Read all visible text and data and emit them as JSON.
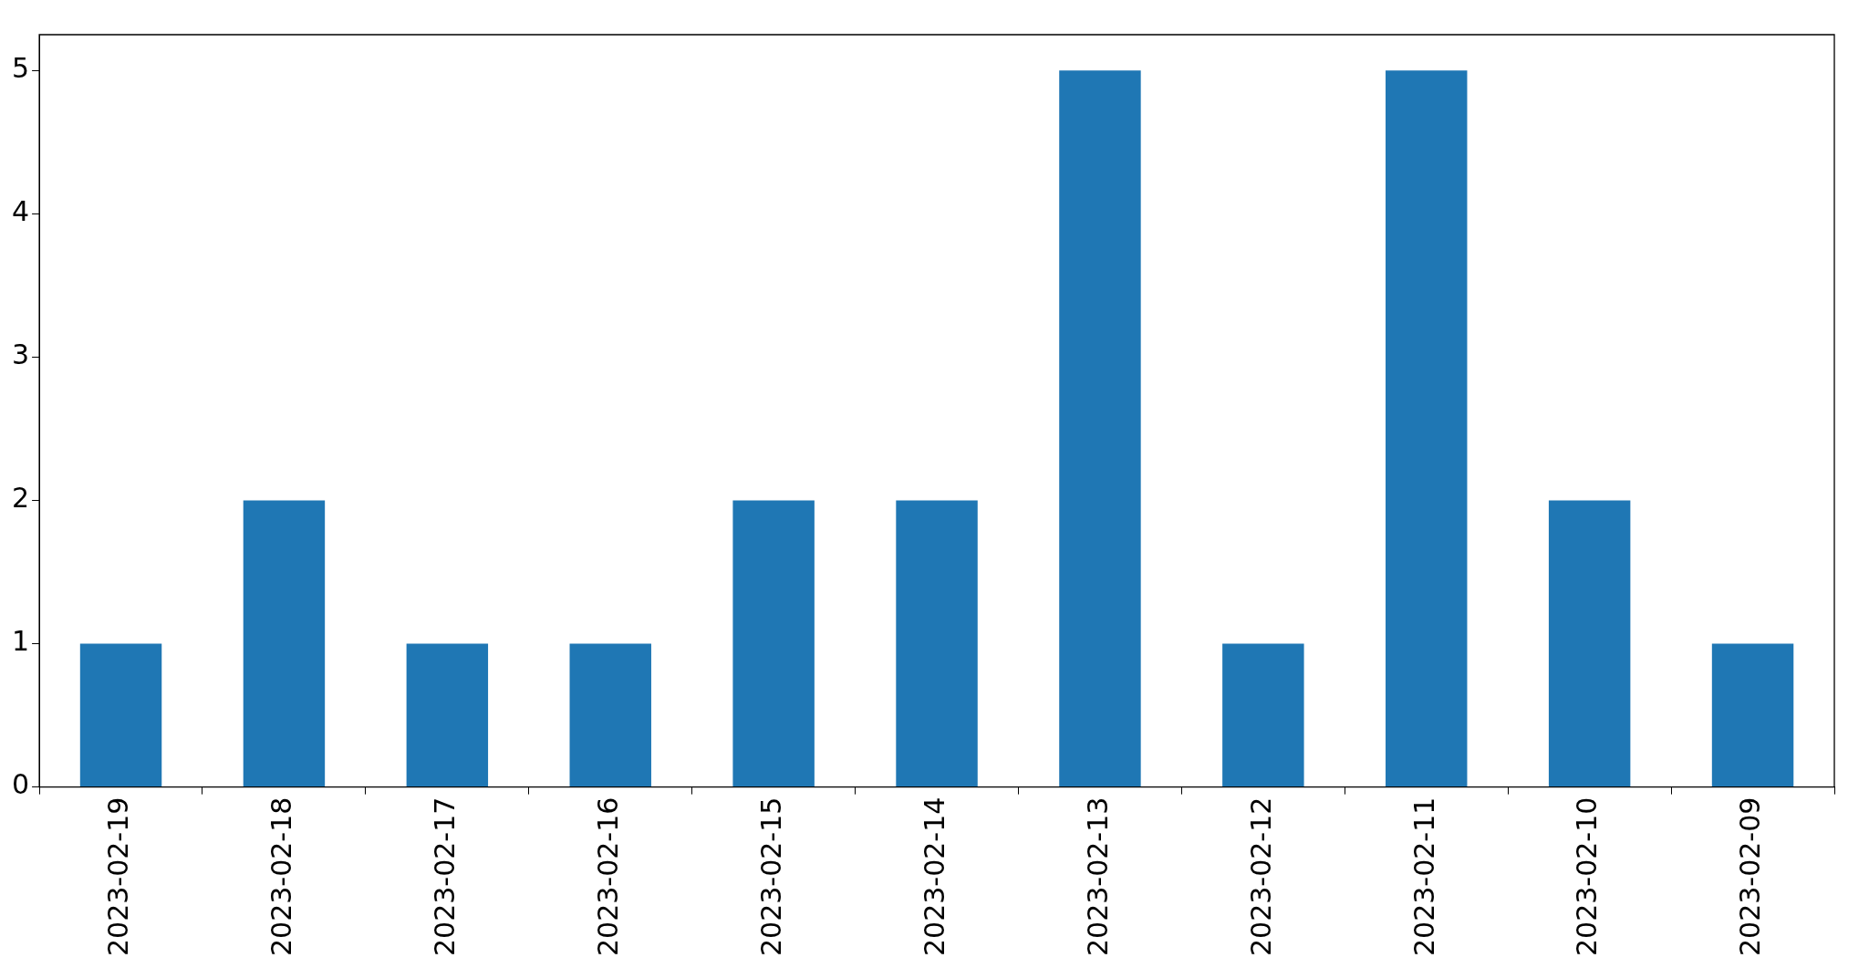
{
  "chart_data": {
    "type": "bar",
    "categories": [
      "2023-02-19",
      "2023-02-18",
      "2023-02-17",
      "2023-02-16",
      "2023-02-15",
      "2023-02-14",
      "2023-02-13",
      "2023-02-12",
      "2023-02-11",
      "2023-02-10",
      "2023-02-09"
    ],
    "values": [
      1,
      2,
      1,
      1,
      2,
      2,
      5,
      1,
      5,
      2,
      1
    ],
    "color": "#1f77b4",
    "ylim": [
      0,
      5.25
    ],
    "yticks": [
      0,
      1,
      2,
      3,
      4,
      5
    ],
    "grid": false,
    "legend": false
  }
}
